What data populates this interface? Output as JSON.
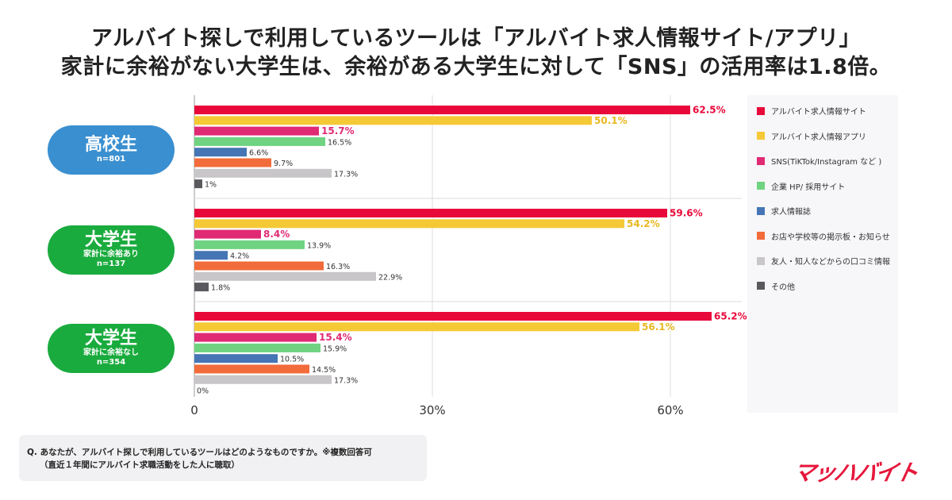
{
  "title_line1": "アルバイト探しで利用しているツールは「アルバイト求人情報サイト/アプリ」",
  "title_line2": "家計に余裕がない大学生は、余裕がある大学生に対して「SNS」の活用率は1.8倍。",
  "note": {
    "line1": "Q. あなたが、アルバイト探しで利用しているツールはどのようなものですか。※複数回答可",
    "line2": "（直近１年間にアルバイト求職活動をした人に聴取）"
  },
  "logo_text": "マッハバイト",
  "chart_data": {
    "type": "bar",
    "orientation": "horizontal",
    "xlim": [
      0,
      68
    ],
    "x_ticks": [
      "0",
      "30%",
      "60%"
    ],
    "x_tick_values": [
      0,
      30,
      60
    ],
    "grid": true,
    "legend_position": "right",
    "groups": [
      {
        "name": "高校生",
        "sub": "",
        "n": "n=801",
        "color": "#3a8fd0"
      },
      {
        "name": "大学生",
        "sub": "家計に余裕あり",
        "n": "n=137",
        "color": "#1aab3e"
      },
      {
        "name": "大学生",
        "sub": "家計に余裕なし",
        "n": "n=354",
        "color": "#1aab3e"
      }
    ],
    "series": [
      {
        "name": "アルバイト求人情報サイト",
        "color": "#e8093a",
        "values": [
          62.5,
          59.6,
          65.2
        ],
        "labels": [
          "62.5%",
          "59.6%",
          "65.2%"
        ],
        "highlight": true
      },
      {
        "name": "アルバイト求人情報アプリ",
        "color": "#f5c935",
        "values": [
          50.1,
          54.2,
          56.1
        ],
        "labels": [
          "50.1%",
          "54.2%",
          "56.1%"
        ],
        "highlight": true
      },
      {
        "name": "SNS(TiKTok/Instagram など )",
        "color": "#e02a74",
        "values": [
          15.7,
          8.4,
          15.4
        ],
        "labels": [
          "15.7%",
          "8.4%",
          "15.4%"
        ],
        "highlight": true
      },
      {
        "name": "企業 HP/ 採用サイト",
        "color": "#6fd381",
        "values": [
          16.5,
          13.9,
          15.9
        ],
        "labels": [
          "16.5%",
          "13.9%",
          "15.9%"
        ]
      },
      {
        "name": "求人情報誌",
        "color": "#4575b4",
        "values": [
          6.6,
          4.2,
          10.5
        ],
        "labels": [
          "6.6%",
          "4.2%",
          "10.5%"
        ]
      },
      {
        "name": "お店や学校等の掲示板・お知らせ",
        "color": "#f26b3a",
        "values": [
          9.7,
          16.3,
          14.5
        ],
        "labels": [
          "9.7%",
          "16.3%",
          "14.5%"
        ]
      },
      {
        "name": "友人・知人などからの口コミ情報",
        "color": "#c8c6c8",
        "values": [
          17.3,
          22.9,
          17.3
        ],
        "labels": [
          "17.3%",
          "22.9%",
          "17.3%"
        ]
      },
      {
        "name": "その他",
        "color": "#5a5a5e",
        "values": [
          1,
          1.8,
          0
        ],
        "labels": [
          "1%",
          "1.8%",
          "0%"
        ]
      }
    ]
  }
}
